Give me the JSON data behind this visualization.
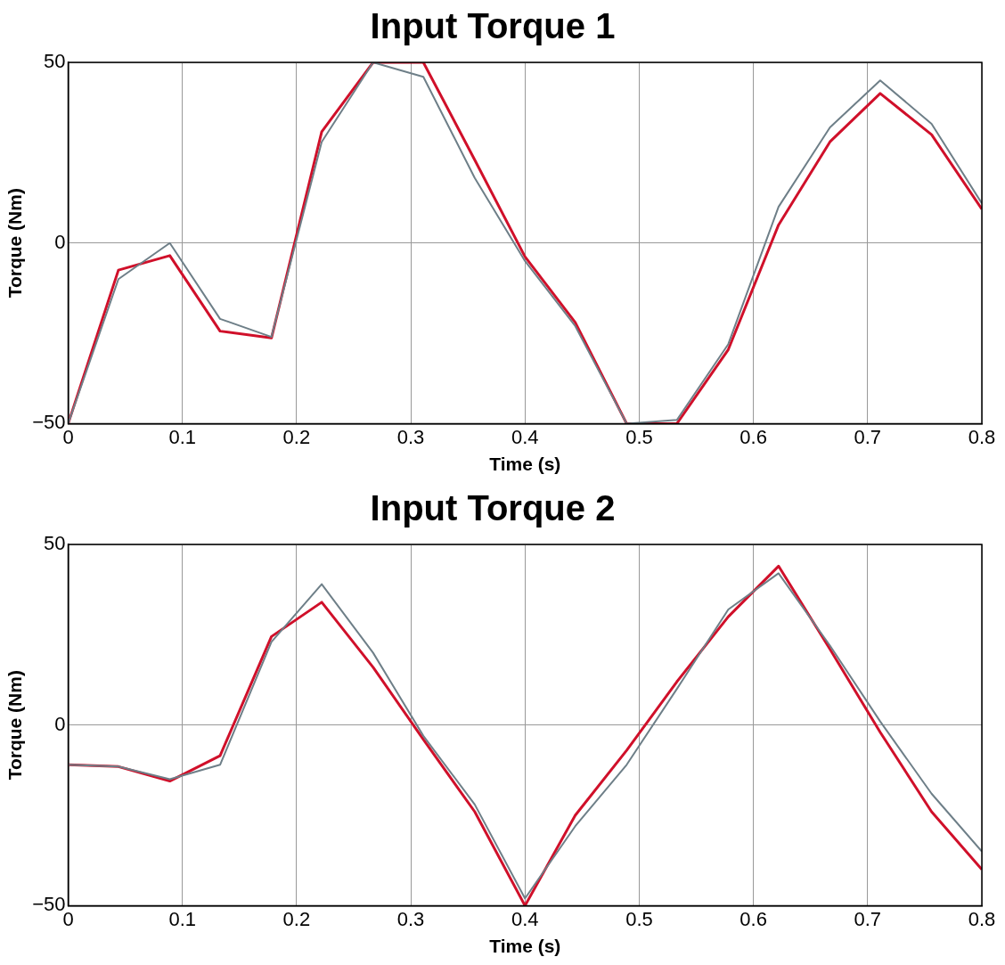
{
  "chart_data": [
    {
      "type": "line",
      "title": "Input Torque 1",
      "xlabel": "Time (s)",
      "ylabel": "Torque (Nm)",
      "x": [
        0,
        0.044,
        0.089,
        0.133,
        0.178,
        0.222,
        0.267,
        0.311,
        0.356,
        0.4,
        0.444,
        0.489,
        0.533,
        0.578,
        0.622,
        0.667,
        0.711,
        0.756,
        0.8
      ],
      "series": [
        {
          "color": "#6e7f88",
          "values": [
            -50,
            -10,
            0,
            -21,
            -26,
            28,
            50,
            46,
            18,
            -5,
            -23,
            -50,
            -49,
            -28,
            10,
            32,
            45,
            33,
            11
          ]
        },
        {
          "color": "#d0102a",
          "values": [
            -50,
            -7.5,
            -3.5,
            -24.4,
            -26.3,
            30.8,
            50,
            50,
            23,
            -3.8,
            -22,
            -50,
            -50,
            -29.5,
            5,
            28,
            41.4,
            30,
            9.4
          ]
        }
      ],
      "xlim": [
        0,
        0.8
      ],
      "xticks": [
        0,
        0.1,
        0.2,
        0.3,
        0.4,
        0.5,
        0.6,
        0.7,
        0.8
      ],
      "ylim": [
        -50,
        50
      ],
      "yticks": [
        -50,
        0,
        50
      ],
      "grid": true,
      "legend": false,
      "marker": "none",
      "line_style": "solid"
    },
    {
      "type": "line",
      "title": "Input Torque 2",
      "xlabel": "Time (s)",
      "ylabel": "Torque (Nm)",
      "x": [
        0,
        0.044,
        0.089,
        0.133,
        0.178,
        0.222,
        0.267,
        0.311,
        0.356,
        0.4,
        0.444,
        0.489,
        0.533,
        0.578,
        0.622,
        0.667,
        0.711,
        0.756,
        0.8
      ],
      "series": [
        {
          "color": "#6e7f88",
          "values": [
            -11,
            -11.5,
            -15,
            -11,
            23,
            39,
            20,
            -3,
            -22,
            -48,
            -28,
            -11,
            10,
            32,
            42,
            22,
            1,
            -19,
            -35
          ]
        },
        {
          "color": "#d0102a",
          "values": [
            -11,
            -11.5,
            -15.5,
            -8.5,
            24.5,
            34,
            16,
            -4,
            -24,
            -50,
            -25,
            -7,
            12,
            30,
            44,
            21,
            -2,
            -24,
            -40
          ]
        }
      ],
      "xlim": [
        0,
        0.8
      ],
      "xticks": [
        0,
        0.1,
        0.2,
        0.3,
        0.4,
        0.5,
        0.6,
        0.7,
        0.8
      ],
      "ylim": [
        -50,
        50
      ],
      "yticks": [
        -50,
        0,
        50
      ],
      "grid": true,
      "legend": false,
      "marker": "none",
      "line_style": "solid"
    }
  ]
}
